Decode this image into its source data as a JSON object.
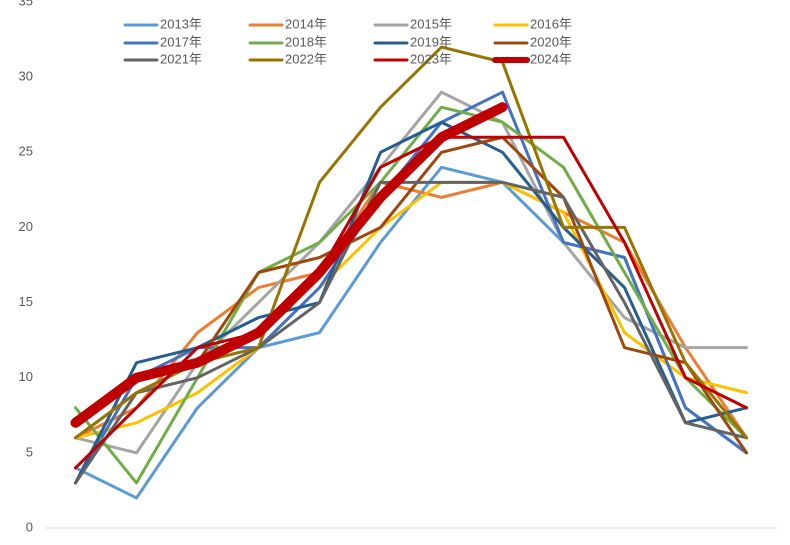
{
  "chart_data": {
    "type": "line",
    "categories": [
      null,
      null,
      null,
      null,
      null,
      null,
      null,
      null,
      null,
      null,
      null,
      null
    ],
    "ylim": [
      0,
      35
    ],
    "yticks": [
      0,
      5,
      10,
      15,
      20,
      25,
      30,
      35
    ],
    "grid": false,
    "legend": "top",
    "series": [
      {
        "name": "2013年",
        "color": "#5b9bd5",
        "values": [
          4,
          2,
          8,
          12,
          13,
          19,
          24,
          23,
          19,
          18,
          8,
          5
        ]
      },
      {
        "name": "2014年",
        "color": "#ed7d31",
        "values": [
          6,
          8,
          13,
          16,
          17,
          23,
          22,
          23,
          21,
          19,
          12,
          6
        ]
      },
      {
        "name": "2015年",
        "color": "#a5a5a5",
        "values": [
          6,
          5,
          11,
          15,
          19,
          24,
          29,
          27,
          19,
          14,
          12,
          12
        ]
      },
      {
        "name": "2016年",
        "color": "#ffc000",
        "values": [
          6,
          7,
          9,
          12,
          16,
          20,
          23,
          23,
          21,
          13,
          10,
          9
        ]
      },
      {
        "name": "2017年",
        "color": "#4472c4",
        "values": [
          3,
          10,
          12,
          12,
          16,
          22,
          27,
          29,
          19,
          18,
          8,
          5
        ]
      },
      {
        "name": "2018年",
        "color": "#70ad47",
        "values": [
          8,
          3,
          10,
          17,
          19,
          23,
          28,
          27,
          24,
          17,
          10,
          6
        ]
      },
      {
        "name": "2019年",
        "color": "#255e91",
        "values": [
          3,
          11,
          12,
          14,
          15,
          25,
          27,
          25,
          20,
          16,
          7,
          8
        ]
      },
      {
        "name": "2020年",
        "color": "#9e480e",
        "values": [
          6,
          9,
          11,
          17,
          18,
          20,
          25,
          26,
          22,
          12,
          11,
          5
        ]
      },
      {
        "name": "2021年",
        "color": "#636363",
        "values": [
          3,
          9,
          10,
          12,
          15,
          23,
          23,
          23,
          22,
          15,
          7,
          6
        ]
      },
      {
        "name": "2022年",
        "color": "#997300",
        "values": [
          6,
          9,
          11,
          12,
          23,
          28,
          32,
          31,
          20,
          20,
          11,
          6
        ]
      },
      {
        "name": "2023年",
        "color": "#c00000",
        "values": [
          4,
          8,
          12,
          13,
          17,
          24,
          26,
          26,
          26,
          19,
          10,
          8
        ]
      },
      {
        "name": "2024年",
        "color": "#c00000",
        "width": 10,
        "values": [
          7,
          10,
          11,
          13,
          17,
          22,
          26,
          28,
          null,
          null,
          null,
          null
        ]
      }
    ]
  }
}
